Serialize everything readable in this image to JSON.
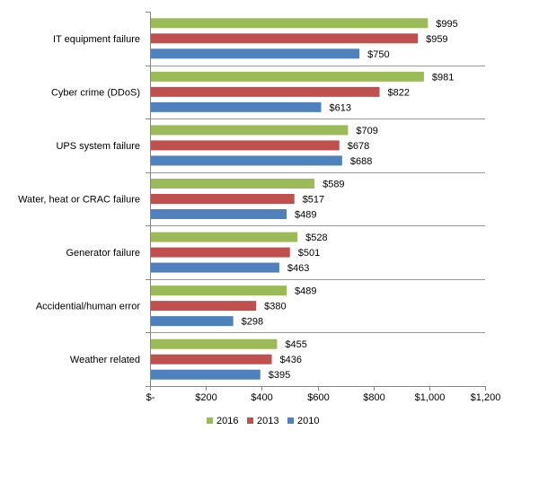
{
  "chart_data": {
    "type": "bar",
    "orientation": "horizontal",
    "categories": [
      "IT equipment failure",
      "Cyber crime (DDoS)",
      "UPS system failure",
      "Water, heat or CRAC failure",
      "Generator failure",
      "Accidential/human error",
      "Weather related"
    ],
    "series": [
      {
        "name": "2016",
        "color": "#9BBB59",
        "values": [
          995,
          981,
          709,
          589,
          528,
          489,
          455
        ],
        "labels": [
          "$995",
          "$981",
          "$709",
          "$589",
          "$528",
          "$489",
          "$455"
        ]
      },
      {
        "name": "2013",
        "color": "#C0504D",
        "values": [
          959,
          822,
          678,
          517,
          501,
          380,
          436
        ],
        "labels": [
          "$959",
          "$822",
          "$678",
          "$517",
          "$501",
          "$380",
          "$436"
        ]
      },
      {
        "name": "2010",
        "color": "#4F81BD",
        "values": [
          750,
          613,
          688,
          489,
          463,
          298,
          395
        ],
        "labels": [
          "$750",
          "$613",
          "$688",
          "$489",
          "$463",
          "$298",
          "$395"
        ]
      }
    ],
    "xlim": [
      0,
      1200
    ],
    "xticks": [
      0,
      200,
      400,
      600,
      800,
      1000,
      1200
    ],
    "xtick_labels": [
      "$-",
      "$200",
      "$400",
      "$600",
      "$800",
      "$1,000",
      "$1,200"
    ],
    "title": "",
    "xlabel": "",
    "ylabel": "",
    "legend_position": "bottom",
    "grid": false,
    "category_separators": true
  }
}
